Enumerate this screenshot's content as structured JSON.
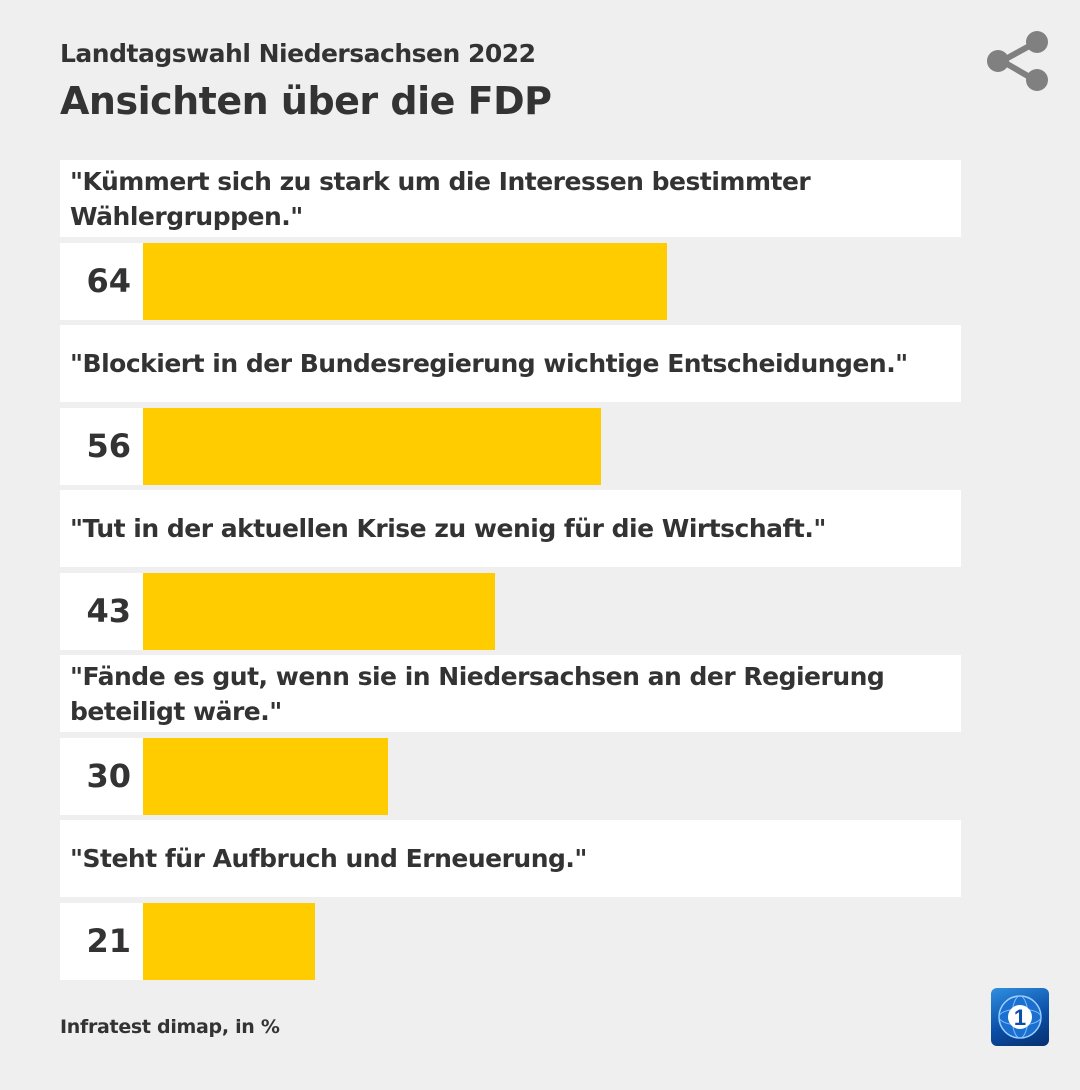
{
  "header": {
    "subtitle": "Landtagswahl Niedersachsen 2022",
    "title": "Ansichten über die FDP"
  },
  "share_icon": "share-icon",
  "chart_data": {
    "type": "bar",
    "orientation": "horizontal",
    "categories": [
      "\"Kümmert sich zu stark um die Interessen bestimmter Wählergruppen.\"",
      "\"Blockiert in der Bundesregierung wichtige Entscheidungen.\"",
      "\"Tut in der aktuellen Krise zu wenig für die Wirtschaft.\"",
      "\"Fände es gut, wenn sie in Niedersachsen an der Regierung beteiligt wäre.\"",
      "\"Steht für Aufbruch und Erneuerung.\""
    ],
    "values": [
      64,
      56,
      43,
      30,
      21
    ],
    "xlim": [
      0,
      100
    ],
    "bar_color": "#ffcc00"
  },
  "footer": {
    "source": "Infratest dimap, in %"
  },
  "logo": {
    "icon": "ard-tagesschau-logo-icon",
    "glyph": "1"
  }
}
